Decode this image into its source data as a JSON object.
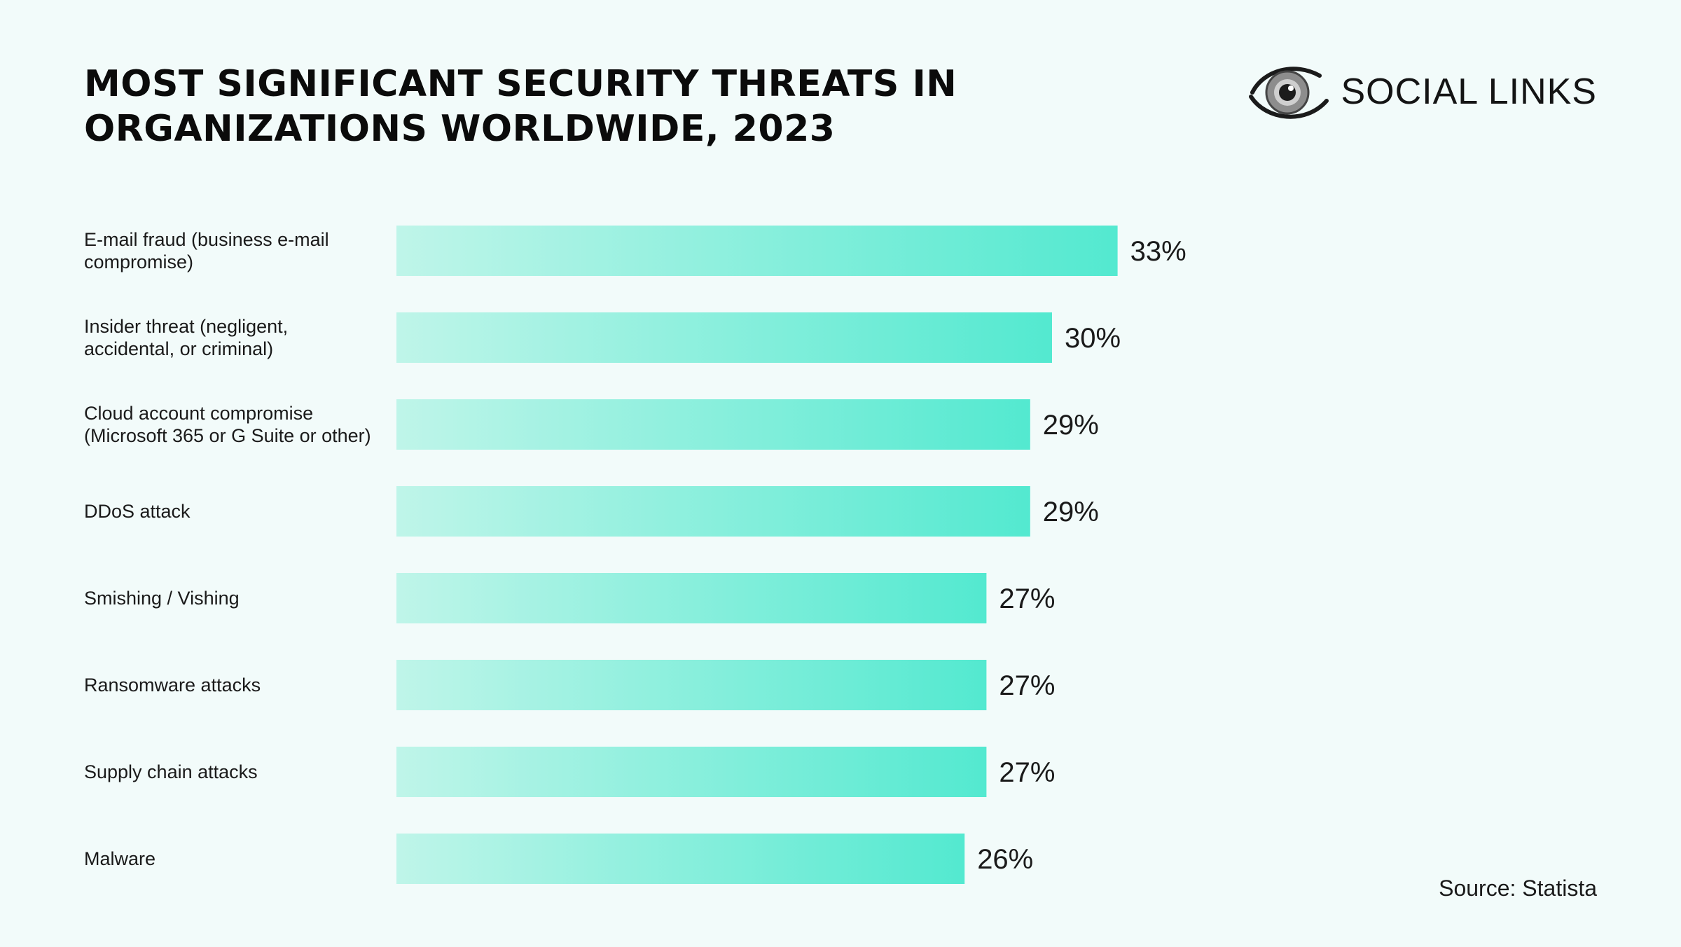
{
  "header": {
    "title_line1": "MOST SIGNIFICANT SECURITY THREATS IN",
    "title_line2": "ORGANIZATIONS WORLDWIDE, 2023"
  },
  "logo": {
    "text": "SOCIAL LINKS",
    "icon": "eye-icon"
  },
  "footer": {
    "source": "Source:  Statista"
  },
  "colors": {
    "background": "#f2fbfa",
    "bar_start": "#bff5e9",
    "bar_end": "#53e9d0",
    "text": "#111111"
  },
  "chart_data": {
    "type": "bar",
    "orientation": "horizontal",
    "title": "MOST SIGNIFICANT SECURITY THREATS IN ORGANIZATIONS WORLDWIDE, 2023",
    "categories": [
      [
        "E-mail fraud (business e-mail",
        "compromise)"
      ],
      [
        "Insider threat (negligent,",
        "accidental, or criminal)"
      ],
      [
        "Cloud account compromise",
        "(Microsoft 365 or G Suite or other)"
      ],
      [
        "DDoS attack"
      ],
      [
        "Smishing / Vishing"
      ],
      [
        "Ransomware attacks"
      ],
      [
        "Supply chain attacks"
      ],
      [
        "Malware"
      ]
    ],
    "values": [
      33,
      30,
      29,
      29,
      27,
      27,
      27,
      26
    ],
    "value_labels": [
      "33%",
      "30%",
      "29%",
      "29%",
      "27%",
      "27%",
      "27%",
      "26%"
    ],
    "unit": "%",
    "xlabel": "",
    "ylabel": "",
    "grid": false,
    "legend": "none"
  }
}
